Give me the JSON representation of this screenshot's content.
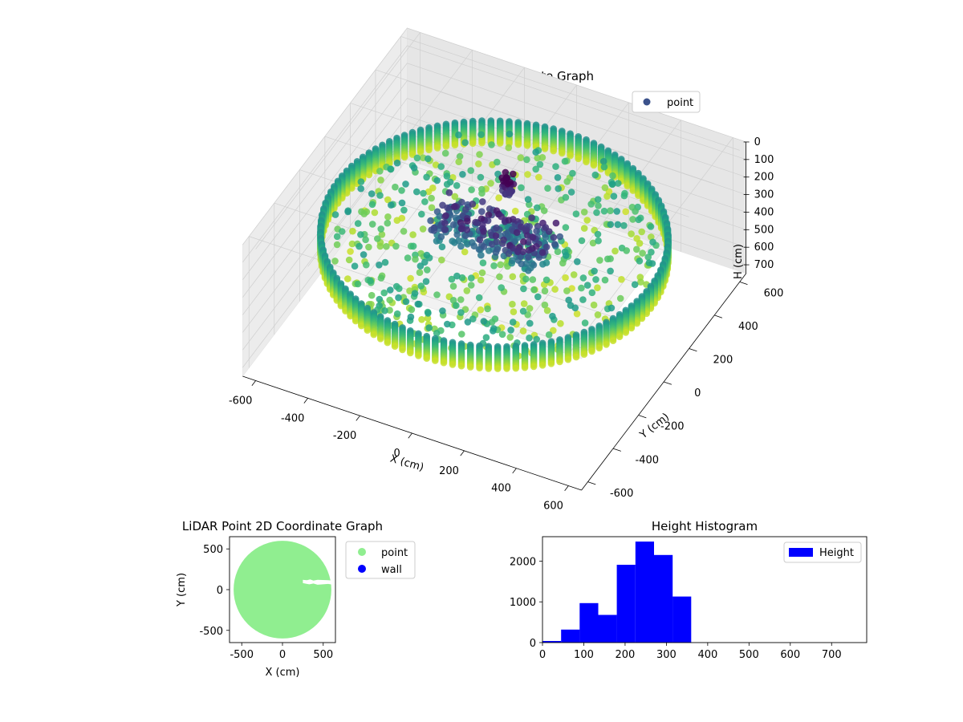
{
  "chart_data": [
    {
      "type": "scatter",
      "title": "LiDAR Point 3D Coordinate Graph",
      "xlabel": "X (cm)",
      "ylabel": "Y (cm)",
      "zlabel": "H (cm)",
      "x_ticks": [
        -600,
        -400,
        -200,
        0,
        200,
        400,
        600
      ],
      "y_ticks": [
        -600,
        -400,
        -200,
        0,
        200,
        400,
        600
      ],
      "z_ticks": [
        0,
        100,
        200,
        300,
        400,
        500,
        600,
        700
      ],
      "xlim": [
        -650,
        650
      ],
      "ylim": [
        -650,
        650
      ],
      "zlim": [
        0,
        750
      ],
      "z_inverted": true,
      "colormap": "viridis",
      "legend": {
        "entries": [
          {
            "name": "point",
            "color": "#3b528b"
          }
        ],
        "placement": "top-right"
      },
      "wall_radius": 600,
      "wall_height_range": [
        230,
        360
      ]
    },
    {
      "type": "scatter",
      "title": "LiDAR Point 2D Coordinate Graph",
      "xlabel": "X (cm)",
      "ylabel": "Y (cm)",
      "x_ticks": [
        -500,
        0,
        500
      ],
      "y_ticks": [
        -500,
        0,
        500
      ],
      "xlim": [
        -650,
        650
      ],
      "ylim": [
        -650,
        650
      ],
      "series": [
        {
          "name": "point",
          "color": "#90ee90",
          "shape": "disc",
          "radius": 600
        },
        {
          "name": "wall",
          "color": "#0000ff",
          "shape": "none"
        }
      ],
      "gap_polygon": [
        [
          250,
          120
        ],
        [
          300,
          115
        ],
        [
          340,
          125
        ],
        [
          380,
          110
        ],
        [
          430,
          120
        ],
        [
          560,
          115
        ],
        [
          620,
          110
        ],
        [
          620,
          60
        ],
        [
          560,
          70
        ],
        [
          430,
          60
        ],
        [
          380,
          75
        ],
        [
          330,
          65
        ],
        [
          300,
          70
        ],
        [
          250,
          80
        ]
      ],
      "legend": {
        "placement": "outside-right"
      }
    },
    {
      "type": "bar",
      "title": "Height Histogram",
      "x_ticks": [
        0,
        100,
        200,
        300,
        400,
        500,
        600,
        700
      ],
      "y_ticks": [
        0,
        1000,
        2000
      ],
      "xlim": [
        0,
        785
      ],
      "ylim": [
        0,
        2600
      ],
      "bin_edges": [
        0,
        45,
        90,
        135,
        180,
        225,
        270,
        315,
        360
      ],
      "values": [
        40,
        320,
        970,
        680,
        1910,
        2480,
        2150,
        1130
      ],
      "series": [
        {
          "name": "Height",
          "color": "#0000ff"
        }
      ],
      "legend": {
        "placement": "top-right"
      }
    }
  ]
}
